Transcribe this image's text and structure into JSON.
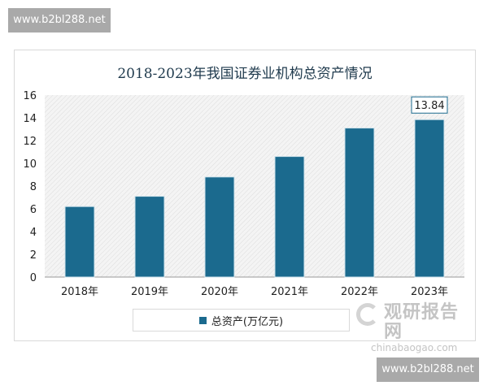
{
  "watermark": "www.b2bl288.net",
  "brand": {
    "cn": "观研报告网",
    "en": "chinabaogao.com"
  },
  "chart_data": {
    "type": "bar",
    "title": "2018-2023年我国证券业机构总资产情况",
    "categories": [
      "2018年",
      "2019年",
      "2020年",
      "2021年",
      "2022年",
      "2023年"
    ],
    "series": [
      {
        "name": "总资产(万亿元)",
        "values": [
          6.2,
          7.1,
          8.8,
          10.6,
          13.1,
          13.84
        ]
      }
    ],
    "data_labels": {
      "2023年": "13.84"
    },
    "ylim": [
      0,
      16
    ],
    "yticks": [
      0,
      2,
      4,
      6,
      8,
      10,
      12,
      14,
      16
    ],
    "grid": false,
    "legend": "bottom",
    "colors": {
      "bar": "#1b6a8e"
    }
  }
}
